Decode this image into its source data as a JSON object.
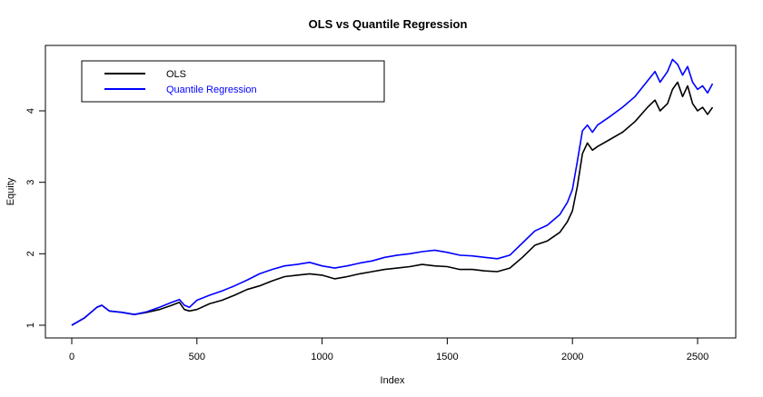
{
  "chart_data": {
    "type": "line",
    "title": "OLS vs Quantile Regression",
    "xlabel": "Index",
    "ylabel": "Equity",
    "xlim": [
      0,
      2560
    ],
    "ylim": [
      1,
      4.75
    ],
    "x_ticks": [
      0,
      500,
      1000,
      1500,
      2000,
      2500
    ],
    "y_ticks": [
      1,
      2,
      3,
      4
    ],
    "x_tick_labels": [
      "0",
      "500",
      "1000",
      "1500",
      "2000",
      "2500"
    ],
    "y_tick_labels": [
      "1",
      "2",
      "3",
      "4"
    ],
    "grid": false,
    "legend_position": "top-left",
    "series": [
      {
        "name": "OLS",
        "color": "#000000",
        "x": [
          0,
          50,
          100,
          120,
          150,
          200,
          250,
          300,
          350,
          400,
          430,
          450,
          470,
          500,
          550,
          600,
          650,
          700,
          750,
          800,
          850,
          900,
          950,
          1000,
          1050,
          1100,
          1150,
          1200,
          1250,
          1300,
          1350,
          1400,
          1450,
          1500,
          1550,
          1600,
          1650,
          1700,
          1750,
          1800,
          1850,
          1900,
          1950,
          1980,
          2000,
          2020,
          2040,
          2060,
          2080,
          2100,
          2150,
          2200,
          2250,
          2300,
          2330,
          2350,
          2380,
          2400,
          2420,
          2440,
          2460,
          2480,
          2500,
          2520,
          2540,
          2560
        ],
        "values": [
          1.0,
          1.1,
          1.25,
          1.28,
          1.2,
          1.18,
          1.15,
          1.18,
          1.22,
          1.28,
          1.32,
          1.22,
          1.2,
          1.22,
          1.3,
          1.35,
          1.42,
          1.5,
          1.55,
          1.62,
          1.68,
          1.7,
          1.72,
          1.7,
          1.65,
          1.68,
          1.72,
          1.75,
          1.78,
          1.8,
          1.82,
          1.85,
          1.83,
          1.82,
          1.78,
          1.78,
          1.76,
          1.75,
          1.8,
          1.95,
          2.12,
          2.18,
          2.3,
          2.45,
          2.6,
          2.95,
          3.4,
          3.55,
          3.45,
          3.5,
          3.6,
          3.7,
          3.85,
          4.05,
          4.15,
          4.0,
          4.1,
          4.3,
          4.4,
          4.2,
          4.35,
          4.1,
          4.0,
          4.05,
          3.95,
          4.05
        ]
      },
      {
        "name": "Quantile Regression",
        "color": "#0000ff",
        "x": [
          0,
          50,
          100,
          120,
          150,
          200,
          250,
          300,
          350,
          400,
          430,
          450,
          470,
          500,
          550,
          600,
          650,
          700,
          750,
          800,
          850,
          900,
          950,
          1000,
          1050,
          1100,
          1150,
          1200,
          1250,
          1300,
          1350,
          1400,
          1450,
          1500,
          1550,
          1600,
          1650,
          1700,
          1750,
          1800,
          1850,
          1900,
          1950,
          1980,
          2000,
          2020,
          2040,
          2060,
          2080,
          2100,
          2150,
          2200,
          2250,
          2300,
          2330,
          2350,
          2380,
          2400,
          2420,
          2440,
          2460,
          2480,
          2500,
          2520,
          2540,
          2560
        ],
        "values": [
          1.0,
          1.1,
          1.25,
          1.28,
          1.2,
          1.18,
          1.15,
          1.19,
          1.25,
          1.32,
          1.36,
          1.28,
          1.25,
          1.35,
          1.42,
          1.48,
          1.55,
          1.63,
          1.72,
          1.78,
          1.83,
          1.85,
          1.88,
          1.83,
          1.8,
          1.83,
          1.87,
          1.9,
          1.95,
          1.98,
          2.0,
          2.03,
          2.05,
          2.02,
          1.98,
          1.97,
          1.95,
          1.93,
          1.98,
          2.15,
          2.32,
          2.4,
          2.55,
          2.72,
          2.9,
          3.3,
          3.72,
          3.8,
          3.7,
          3.8,
          3.92,
          4.05,
          4.2,
          4.42,
          4.55,
          4.4,
          4.55,
          4.72,
          4.65,
          4.5,
          4.62,
          4.4,
          4.3,
          4.35,
          4.25,
          4.38
        ]
      }
    ]
  }
}
